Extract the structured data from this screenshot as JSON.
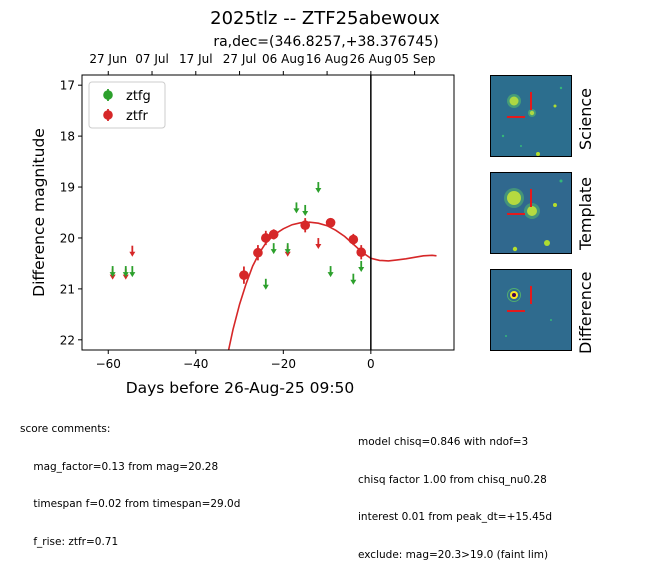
{
  "header": {
    "title": "2025tlz -- ZTF25abewoux",
    "subtitle": "ra,dec=(346.8257,+38.376745)"
  },
  "comments": {
    "left": [
      "score comments:",
      "    mag_factor=0.13 from mag=20.28",
      "    timespan f=0.02 from timespan=29.0d",
      "    f_rise: ztfr=0.71"
    ],
    "right": [
      "model chisq=0.846 with ndof=3",
      "chisq factor 1.00 from chisq_nu0.28",
      "interest 0.01 from peak_dt=+15.45d",
      "exclude: mag=20.3>19.0 (faint lim)"
    ]
  },
  "stamps": [
    {
      "label": "Science"
    },
    {
      "label": "Template"
    },
    {
      "label": "Difference"
    }
  ],
  "chart_data": {
    "type": "scatter",
    "title": "2025tlz -- ZTF25abewoux",
    "subtitle": "ra,dec=(346.8257,+38.376745)",
    "xlabel": "Days before 26-Aug-25 09:50",
    "ylabel": "Difference magnitude",
    "xlim": [
      -66,
      19
    ],
    "ylim": [
      22.2,
      16.8
    ],
    "y_inverted": true,
    "xticks": [
      -60,
      -40,
      -20,
      0
    ],
    "yticks": [
      17,
      18,
      19,
      20,
      21,
      22
    ],
    "top_axis": {
      "tick_labels": [
        "27 Jun",
        "07 Jul",
        "17 Jul",
        "27 Jul",
        "06 Aug",
        "16 Aug",
        "26 Aug",
        "05 Sep"
      ],
      "tick_x": [
        -60,
        -50,
        -40,
        -30,
        -20,
        -10,
        0,
        10
      ]
    },
    "vline_x": 0,
    "legend": {
      "position": "top-left",
      "entries": [
        {
          "name": "ztfg",
          "color": "#2ca02c"
        },
        {
          "name": "ztfr",
          "color": "#d62728"
        }
      ]
    },
    "series": [
      {
        "name": "ztfr",
        "color": "#d62728",
        "detections": [
          {
            "x": -29,
            "y": 20.73,
            "err": 0.17
          },
          {
            "x": -25.8,
            "y": 20.29,
            "err": 0.15
          },
          {
            "x": -24,
            "y": 20.0,
            "err": 0.14
          },
          {
            "x": -22.2,
            "y": 19.93,
            "err": 0.1
          },
          {
            "x": -15,
            "y": 19.75,
            "err": 0.14
          },
          {
            "x": -9.2,
            "y": 19.7,
            "err": 0.06
          },
          {
            "x": -4,
            "y": 20.03,
            "err": 0.11
          },
          {
            "x": -2.2,
            "y": 20.28,
            "err": 0.14
          }
        ],
        "upper_limits": [
          {
            "x": -59,
            "y": 20.7
          },
          {
            "x": -56,
            "y": 20.7
          },
          {
            "x": -54.5,
            "y": 20.25
          },
          {
            "x": -19,
            "y": 20.25
          },
          {
            "x": -12,
            "y": 20.1
          }
        ]
      },
      {
        "name": "ztfg",
        "color": "#2ca02c",
        "detections": [],
        "upper_limits": [
          {
            "x": -59,
            "y": 20.65
          },
          {
            "x": -56,
            "y": 20.65
          },
          {
            "x": -54.5,
            "y": 20.65
          },
          {
            "x": -24,
            "y": 20.9
          },
          {
            "x": -22.2,
            "y": 20.2
          },
          {
            "x": -19,
            "y": 20.2
          },
          {
            "x": -17,
            "y": 19.4
          },
          {
            "x": -15,
            "y": 19.45
          },
          {
            "x": -12,
            "y": 19.0
          },
          {
            "x": -9.2,
            "y": 20.65
          },
          {
            "x": -4,
            "y": 20.8
          },
          {
            "x": -2.2,
            "y": 20.55
          }
        ]
      }
    ],
    "model_curve": {
      "name": "ztfr model",
      "color": "#d62728",
      "x": [
        -32.5,
        -31.5,
        -30,
        -28.5,
        -27,
        -25.5,
        -24,
        -22,
        -20,
        -18,
        -16,
        -14,
        -12,
        -10,
        -8,
        -6,
        -4,
        -2,
        0,
        2,
        4,
        6,
        8,
        10,
        12,
        14,
        15
      ],
      "y": [
        22.2,
        21.8,
        21.3,
        20.9,
        20.55,
        20.3,
        20.1,
        19.93,
        19.82,
        19.74,
        19.7,
        19.69,
        19.71,
        19.76,
        19.85,
        19.97,
        20.12,
        20.28,
        20.4,
        20.44,
        20.45,
        20.43,
        20.41,
        20.38,
        20.35,
        20.34,
        20.35
      ]
    }
  }
}
